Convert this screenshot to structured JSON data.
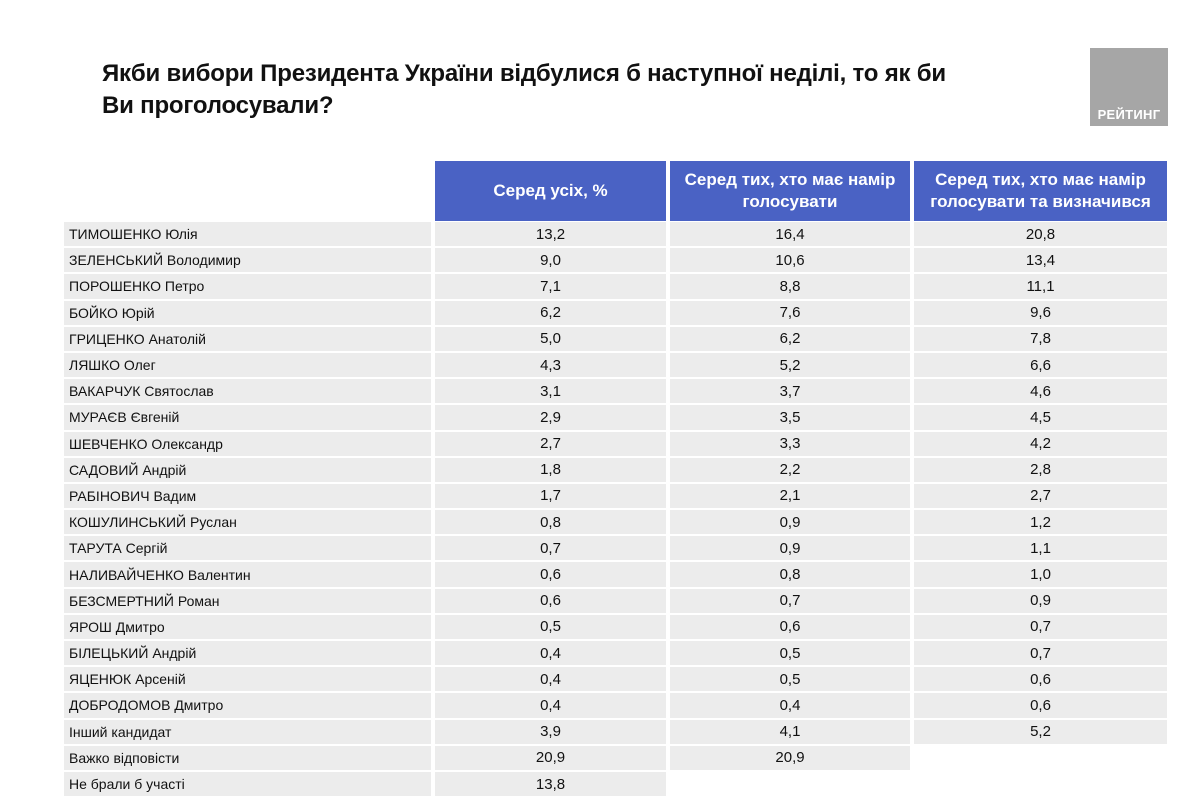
{
  "title": "Якби вибори Президента України відбулися б наступної неділі, то як би Ви проголосували?",
  "logo": {
    "text": "РЕЙТИНГ",
    "color": "#a6a6a6"
  },
  "colors": {
    "header_bg": "#4a62c4",
    "row_bg": "#ececec"
  },
  "table": {
    "headers": [
      "Серед усіх, %",
      "Серед тих, хто має намір голосувати",
      "Серед тих, хто має намір голосувати та визначився"
    ],
    "rows": [
      {
        "name": "ТИМОШЕНКО Юлія",
        "all": "13,2",
        "voters": "16,4",
        "decided": "20,8"
      },
      {
        "name": "ЗЕЛЕНСЬКИЙ Володимир",
        "all": "9,0",
        "voters": "10,6",
        "decided": "13,4"
      },
      {
        "name": "ПОРОШЕНКО Петро",
        "all": "7,1",
        "voters": "8,8",
        "decided": "11,1"
      },
      {
        "name": "БОЙКО Юрій",
        "all": "6,2",
        "voters": "7,6",
        "decided": "9,6"
      },
      {
        "name": "ГРИЦЕНКО Анатолій",
        "all": "5,0",
        "voters": "6,2",
        "decided": "7,8"
      },
      {
        "name": "ЛЯШКО Олег",
        "all": "4,3",
        "voters": "5,2",
        "decided": "6,6"
      },
      {
        "name": "ВАКАРЧУК Святослав",
        "all": "3,1",
        "voters": "3,7",
        "decided": "4,6"
      },
      {
        "name": "МУРАЄВ Євгеній",
        "all": "2,9",
        "voters": "3,5",
        "decided": "4,5"
      },
      {
        "name": "ШЕВЧЕНКО Олександр",
        "all": "2,7",
        "voters": "3,3",
        "decided": "4,2"
      },
      {
        "name": "САДОВИЙ Андрій",
        "all": "1,8",
        "voters": "2,2",
        "decided": "2,8"
      },
      {
        "name": "РАБІНОВИЧ Вадим",
        "all": "1,7",
        "voters": "2,1",
        "decided": "2,7"
      },
      {
        "name": "КОШУЛИНСЬКИЙ Руслан",
        "all": "0,8",
        "voters": "0,9",
        "decided": "1,2"
      },
      {
        "name": "ТАРУТА Сергій",
        "all": "0,7",
        "voters": "0,9",
        "decided": "1,1"
      },
      {
        "name": "НАЛИВАЙЧЕНКО Валентин",
        "all": "0,6",
        "voters": "0,8",
        "decided": "1,0"
      },
      {
        "name": "БЕЗСМЕРТНИЙ Роман",
        "all": "0,6",
        "voters": "0,7",
        "decided": "0,9"
      },
      {
        "name": "ЯРОШ Дмитро",
        "all": "0,5",
        "voters": "0,6",
        "decided": "0,7"
      },
      {
        "name": "БІЛЕЦЬКИЙ Андрій",
        "all": "0,4",
        "voters": "0,5",
        "decided": "0,7"
      },
      {
        "name": "ЯЦЕНЮК Арсеній",
        "all": "0,4",
        "voters": "0,5",
        "decided": "0,6"
      },
      {
        "name": "ДОБРОДОМОВ Дмитро",
        "all": "0,4",
        "voters": "0,4",
        "decided": "0,6"
      },
      {
        "name": "Інший кандидат",
        "all": "3,9",
        "voters": "4,1",
        "decided": "5,2"
      },
      {
        "name": "Важко відповісти",
        "all": "20,9",
        "voters": "20,9",
        "decided": null
      },
      {
        "name": "Не брали б участі",
        "all": "13,8",
        "voters": null,
        "decided": null
      }
    ]
  }
}
